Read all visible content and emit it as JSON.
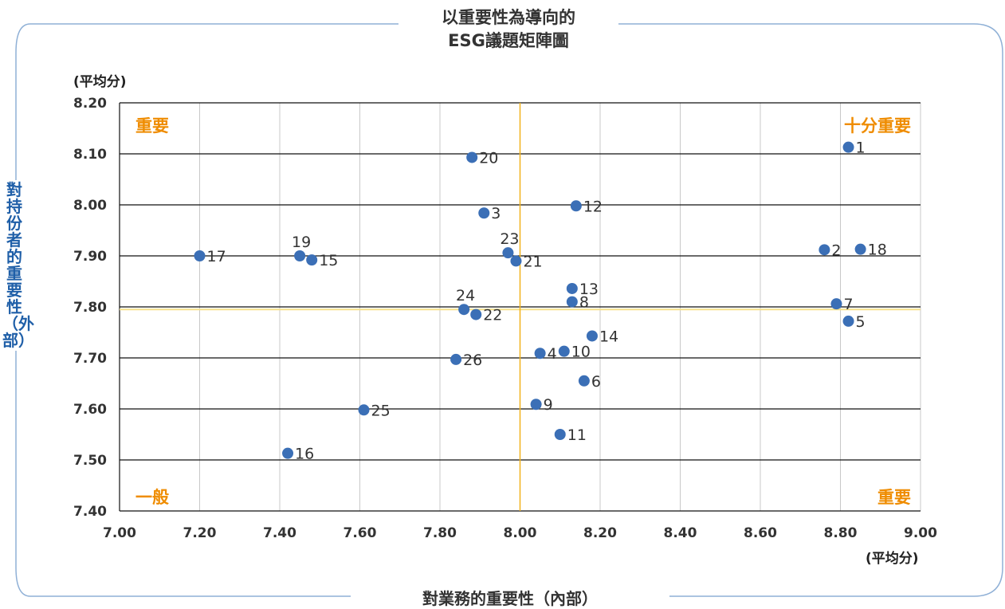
{
  "chart_data": {
    "type": "scatter",
    "title_line1": "以重要性為導向的",
    "title_line2": "ESG議題矩陣圖",
    "xlabel": "對業務的重要性（內部）",
    "ylabel": "對持份者的重要性（外部）",
    "x_unit": "(平均分)",
    "y_unit": "(平均分)",
    "xlim": [
      7.0,
      9.0
    ],
    "ylim": [
      7.4,
      8.2
    ],
    "x_ticks": [
      "7.00",
      "7.20",
      "7.40",
      "7.60",
      "7.80",
      "8.00",
      "8.20",
      "8.40",
      "8.60",
      "8.80",
      "9.00"
    ],
    "y_ticks": [
      "7.40",
      "7.50",
      "7.60",
      "7.70",
      "7.80",
      "7.90",
      "8.00",
      "8.10",
      "8.20"
    ],
    "threshold_x": 8.0,
    "threshold_y": 7.795,
    "quadrant_labels": {
      "top_left": "重要",
      "top_right": "十分重要",
      "bottom_left": "一般",
      "bottom_right": "重要"
    },
    "points": [
      {
        "label": "1",
        "x": 8.82,
        "y": 8.113
      },
      {
        "label": "2",
        "x": 8.76,
        "y": 7.912
      },
      {
        "label": "3",
        "x": 7.91,
        "y": 7.984
      },
      {
        "label": "4",
        "x": 8.05,
        "y": 7.709
      },
      {
        "label": "5",
        "x": 8.82,
        "y": 7.772
      },
      {
        "label": "6",
        "x": 8.16,
        "y": 7.655
      },
      {
        "label": "7",
        "x": 8.79,
        "y": 7.806
      },
      {
        "label": "8",
        "x": 8.13,
        "y": 7.81
      },
      {
        "label": "9",
        "x": 8.04,
        "y": 7.609
      },
      {
        "label": "10",
        "x": 8.11,
        "y": 7.713
      },
      {
        "label": "11",
        "x": 8.1,
        "y": 7.55
      },
      {
        "label": "12",
        "x": 8.14,
        "y": 7.998
      },
      {
        "label": "13",
        "x": 8.13,
        "y": 7.836
      },
      {
        "label": "14",
        "x": 8.18,
        "y": 7.743
      },
      {
        "label": "15",
        "x": 7.48,
        "y": 7.892
      },
      {
        "label": "16",
        "x": 7.42,
        "y": 7.513
      },
      {
        "label": "17",
        "x": 7.2,
        "y": 7.9
      },
      {
        "label": "18",
        "x": 8.85,
        "y": 7.913
      },
      {
        "label": "19",
        "x": 7.45,
        "y": 7.9
      },
      {
        "label": "20",
        "x": 7.88,
        "y": 8.093
      },
      {
        "label": "21",
        "x": 7.99,
        "y": 7.89
      },
      {
        "label": "22",
        "x": 7.89,
        "y": 7.785
      },
      {
        "label": "23",
        "x": 7.97,
        "y": 7.906
      },
      {
        "label": "24",
        "x": 7.86,
        "y": 7.795
      },
      {
        "label": "25",
        "x": 7.61,
        "y": 7.598
      },
      {
        "label": "26",
        "x": 7.84,
        "y": 7.697
      }
    ],
    "colors": {
      "point": "#3b6fb6",
      "quadrant_label": "#ef8c00",
      "threshold_x_line": "#f2b21b",
      "threshold_y_line": "#f7e08a",
      "ylabel": "#1f5fa8",
      "frame": "#8fb0d6"
    }
  }
}
